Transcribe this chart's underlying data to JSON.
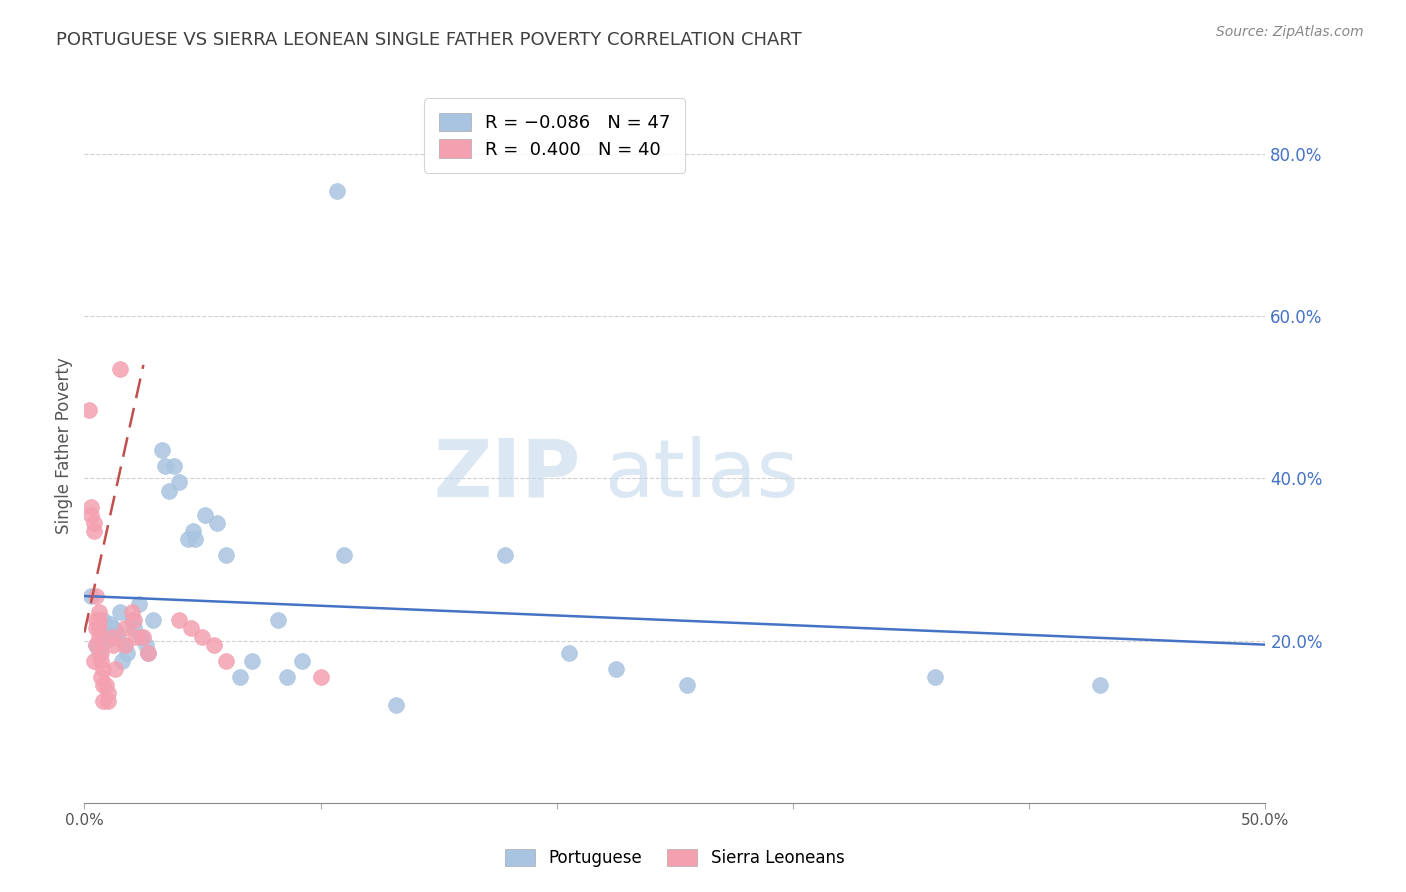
{
  "title": "PORTUGUESE VS SIERRA LEONEAN SINGLE FATHER POVERTY CORRELATION CHART",
  "source": "Source: ZipAtlas.com",
  "ylabel": "Single Father Poverty",
  "right_ytick_labels": [
    "80.0%",
    "60.0%",
    "40.0%",
    "20.0%"
  ],
  "right_ytick_values": [
    0.8,
    0.6,
    0.4,
    0.2
  ],
  "xlim": [
    0.0,
    0.5
  ],
  "ylim": [
    0.0,
    0.88
  ],
  "watermark_part1": "ZIP",
  "watermark_part2": "atlas",
  "portuguese_scatter": [
    [
      0.003,
      0.255
    ],
    [
      0.005,
      0.195
    ],
    [
      0.006,
      0.185
    ],
    [
      0.007,
      0.21
    ],
    [
      0.008,
      0.225
    ],
    [
      0.009,
      0.2
    ],
    [
      0.01,
      0.215
    ],
    [
      0.011,
      0.22
    ],
    [
      0.012,
      0.215
    ],
    [
      0.013,
      0.205
    ],
    [
      0.014,
      0.21
    ],
    [
      0.015,
      0.235
    ],
    [
      0.016,
      0.175
    ],
    [
      0.017,
      0.195
    ],
    [
      0.018,
      0.185
    ],
    [
      0.02,
      0.225
    ],
    [
      0.021,
      0.215
    ],
    [
      0.023,
      0.245
    ],
    [
      0.024,
      0.205
    ],
    [
      0.026,
      0.195
    ],
    [
      0.027,
      0.185
    ],
    [
      0.029,
      0.225
    ],
    [
      0.033,
      0.435
    ],
    [
      0.034,
      0.415
    ],
    [
      0.036,
      0.385
    ],
    [
      0.038,
      0.415
    ],
    [
      0.04,
      0.395
    ],
    [
      0.044,
      0.325
    ],
    [
      0.046,
      0.335
    ],
    [
      0.047,
      0.325
    ],
    [
      0.051,
      0.355
    ],
    [
      0.056,
      0.345
    ],
    [
      0.06,
      0.305
    ],
    [
      0.066,
      0.155
    ],
    [
      0.071,
      0.175
    ],
    [
      0.082,
      0.225
    ],
    [
      0.086,
      0.155
    ],
    [
      0.092,
      0.175
    ],
    [
      0.107,
      0.755
    ],
    [
      0.11,
      0.305
    ],
    [
      0.132,
      0.12
    ],
    [
      0.178,
      0.305
    ],
    [
      0.205,
      0.185
    ],
    [
      0.225,
      0.165
    ],
    [
      0.255,
      0.145
    ],
    [
      0.36,
      0.155
    ],
    [
      0.43,
      0.145
    ]
  ],
  "sierra_scatter": [
    [
      0.002,
      0.485
    ],
    [
      0.003,
      0.365
    ],
    [
      0.003,
      0.355
    ],
    [
      0.004,
      0.345
    ],
    [
      0.004,
      0.335
    ],
    [
      0.004,
      0.175
    ],
    [
      0.005,
      0.255
    ],
    [
      0.005,
      0.225
    ],
    [
      0.005,
      0.215
    ],
    [
      0.005,
      0.195
    ],
    [
      0.006,
      0.235
    ],
    [
      0.006,
      0.225
    ],
    [
      0.006,
      0.215
    ],
    [
      0.006,
      0.205
    ],
    [
      0.007,
      0.185
    ],
    [
      0.007,
      0.175
    ],
    [
      0.007,
      0.155
    ],
    [
      0.008,
      0.165
    ],
    [
      0.008,
      0.145
    ],
    [
      0.008,
      0.125
    ],
    [
      0.009,
      0.145
    ],
    [
      0.01,
      0.135
    ],
    [
      0.01,
      0.125
    ],
    [
      0.012,
      0.205
    ],
    [
      0.012,
      0.195
    ],
    [
      0.013,
      0.165
    ],
    [
      0.015,
      0.535
    ],
    [
      0.017,
      0.215
    ],
    [
      0.017,
      0.195
    ],
    [
      0.02,
      0.235
    ],
    [
      0.021,
      0.225
    ],
    [
      0.022,
      0.205
    ],
    [
      0.025,
      0.205
    ],
    [
      0.027,
      0.185
    ],
    [
      0.04,
      0.225
    ],
    [
      0.045,
      0.215
    ],
    [
      0.05,
      0.205
    ],
    [
      0.055,
      0.195
    ],
    [
      0.06,
      0.175
    ],
    [
      0.1,
      0.155
    ]
  ],
  "portuguese_line_x": [
    0.0,
    0.5
  ],
  "portuguese_line_y": [
    0.255,
    0.195
  ],
  "sierra_line_x": [
    0.0,
    0.025
  ],
  "sierra_line_y": [
    0.21,
    0.54
  ],
  "portuguese_line_color": "#4472c4",
  "sierra_line_color": "#c0504d",
  "portuguese_scatter_color": "#a8c4e0",
  "sierra_scatter_color": "#f4a0b0",
  "grid_color": "#d0d0d0",
  "title_color": "#404040",
  "right_tick_color": "#4472c4",
  "source_color": "#888888",
  "axis_color": "#888888"
}
